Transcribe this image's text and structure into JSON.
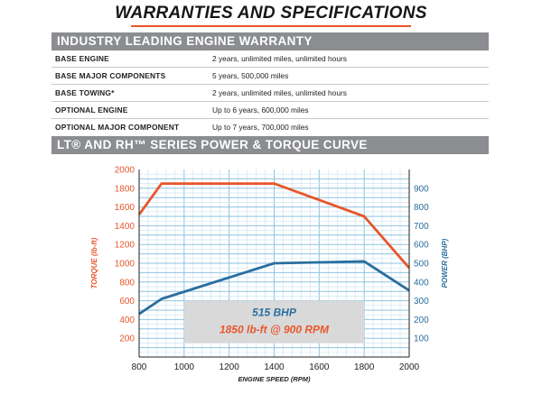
{
  "page_title": "WARRANTIES AND SPECIFICATIONS",
  "warranty": {
    "heading": "INDUSTRY LEADING ENGINE WARRANTY",
    "rows": [
      {
        "label": "BASE ENGINE",
        "value": "2 years, unlimited miles, unlimited hours"
      },
      {
        "label": "BASE MAJOR COMPONENTS",
        "value": "5 years, 500,000 miles"
      },
      {
        "label": "BASE TOWING*",
        "value": "2 years, unlimited miles, unlimited hours"
      },
      {
        "label": "OPTIONAL ENGINE",
        "value": "Up to 6 years, 600,000 miles"
      },
      {
        "label": "OPTIONAL MAJOR COMPONENT",
        "value": "Up to 7 years, 700,000 miles"
      }
    ]
  },
  "curve_heading": "LT® AND RH™ SERIES POWER & TORQUE CURVE",
  "chart_data": {
    "type": "line",
    "xlabel": "ENGINE SPEED (RPM)",
    "ylabel_left": "TORQUE (lb-ft)",
    "ylabel_right": "POWER (BHP)",
    "xlim": [
      800,
      2000
    ],
    "xticks": [
      800,
      1000,
      1200,
      1400,
      1600,
      1800,
      2000
    ],
    "ylim_left": [
      0,
      2000
    ],
    "yticks_left": [
      200,
      400,
      600,
      800,
      1000,
      1200,
      1400,
      1600,
      1800,
      2000
    ],
    "ylim_right": [
      0,
      1000
    ],
    "yticks_right": [
      100,
      200,
      300,
      400,
      500,
      600,
      700,
      800,
      900
    ],
    "grid": true,
    "series": [
      {
        "name": "TORQUE (lb-ft)",
        "axis": "left",
        "color": "#e8562a",
        "x": [
          800,
          900,
          1400,
          1800,
          2000
        ],
        "y": [
          1520,
          1850,
          1850,
          1500,
          950
        ]
      },
      {
        "name": "POWER (BHP)",
        "axis": "right",
        "color": "#2a6e9e",
        "x": [
          800,
          900,
          1400,
          1800,
          2000
        ],
        "y": [
          230,
          310,
          500,
          510,
          355
        ]
      }
    ],
    "annotations": [
      {
        "text": "515 BHP",
        "color": "#2a6e9e"
      },
      {
        "text": "1850 lb-ft @ 900 RPM",
        "color": "#e8562a"
      }
    ]
  }
}
